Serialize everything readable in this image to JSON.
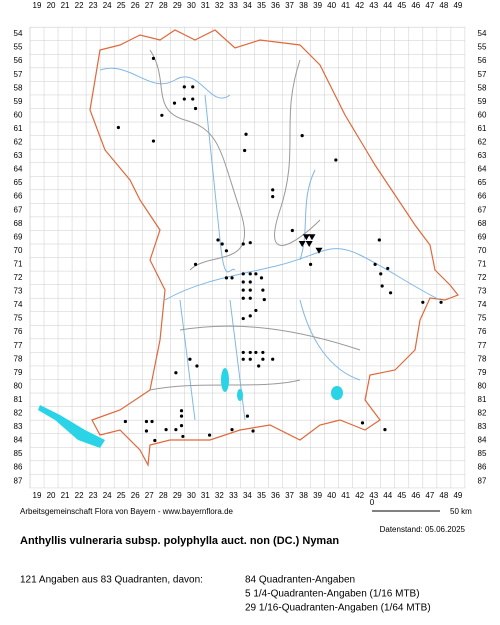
{
  "map": {
    "x_labels": [
      19,
      20,
      21,
      22,
      23,
      24,
      25,
      26,
      27,
      28,
      29,
      30,
      31,
      32,
      33,
      34,
      35,
      36,
      37,
      38,
      39,
      40,
      41,
      42,
      43,
      44,
      45,
      46,
      47,
      48,
      49
    ],
    "y_labels": [
      54,
      55,
      56,
      57,
      58,
      59,
      60,
      61,
      62,
      63,
      64,
      65,
      66,
      67,
      68,
      69,
      70,
      71,
      72,
      73,
      74,
      75,
      76,
      77,
      78,
      79,
      80,
      81,
      82,
      83,
      84,
      85,
      86,
      87
    ],
    "dots": [
      [
        27.3,
        55.8
      ],
      [
        29.5,
        57.9
      ],
      [
        30.1,
        57.9
      ],
      [
        29.5,
        58.8
      ],
      [
        30.1,
        58.8
      ],
      [
        28.8,
        59.1
      ],
      [
        30.3,
        59.5
      ],
      [
        27.9,
        60
      ],
      [
        24.8,
        60.9
      ],
      [
        27.3,
        61.9
      ],
      [
        33.9,
        61.4
      ],
      [
        37.9,
        61.5
      ],
      [
        33.8,
        62.6
      ],
      [
        40.3,
        63.3
      ],
      [
        35.8,
        65.5
      ],
      [
        35.8,
        66
      ],
      [
        31.9,
        69.2
      ],
      [
        32.2,
        69.5
      ],
      [
        33.7,
        69.5
      ],
      [
        34.2,
        69.4
      ],
      [
        32.5,
        70
      ],
      [
        37.2,
        68.5
      ],
      [
        38.5,
        71
      ],
      [
        30.3,
        71
      ],
      [
        32.5,
        72
      ],
      [
        32.9,
        72
      ],
      [
        33.7,
        71.7
      ],
      [
        34.2,
        71.7
      ],
      [
        34.6,
        71.7
      ],
      [
        35,
        72
      ],
      [
        33.7,
        72.3
      ],
      [
        34.2,
        72.3
      ],
      [
        33.7,
        72.9
      ],
      [
        34.2,
        72.9
      ],
      [
        35.1,
        72.9
      ],
      [
        34.2,
        73.5
      ],
      [
        33.7,
        73.5
      ],
      [
        35.2,
        73.6
      ],
      [
        34.6,
        74.4
      ],
      [
        34.2,
        74.8
      ],
      [
        33.7,
        75
      ],
      [
        43.1,
        71
      ],
      [
        43.5,
        71.7
      ],
      [
        44,
        71.3
      ],
      [
        43.6,
        72.6
      ],
      [
        44.2,
        73.1
      ],
      [
        46.5,
        73.8
      ],
      [
        47.8,
        73.8
      ],
      [
        43.4,
        69.2
      ],
      [
        33.7,
        77.5
      ],
      [
        34.2,
        77.5
      ],
      [
        34.6,
        77.5
      ],
      [
        35.1,
        77.5
      ],
      [
        33.7,
        78
      ],
      [
        34.2,
        78
      ],
      [
        35.1,
        78
      ],
      [
        35.8,
        78
      ],
      [
        34.8,
        78.5
      ],
      [
        29.9,
        78
      ],
      [
        30.4,
        78.5
      ],
      [
        28.9,
        79
      ],
      [
        29.3,
        81.8
      ],
      [
        29.3,
        82.2
      ],
      [
        29.3,
        82.9
      ],
      [
        27.2,
        82.6
      ],
      [
        26.8,
        82.6
      ],
      [
        25.3,
        82.6
      ],
      [
        26.8,
        83.3
      ],
      [
        28.2,
        83.2
      ],
      [
        28.9,
        83.2
      ],
      [
        29.4,
        83.7
      ],
      [
        27.4,
        84
      ],
      [
        31.3,
        83.6
      ],
      [
        34,
        82.2
      ],
      [
        34.4,
        83.3
      ],
      [
        42.2,
        82.7
      ],
      [
        43.8,
        83.2
      ],
      [
        32.9,
        83.2
      ]
    ],
    "triangles": [
      [
        38.2,
        69
      ],
      [
        38.6,
        69
      ],
      [
        37.9,
        69.5
      ],
      [
        38.4,
        69.5
      ],
      [
        39.1,
        70
      ]
    ],
    "credit": "Arbeitsgemeinschaft Flora von Bayern - www.bayernflora.de",
    "scale_start": "0",
    "scale_end": "50 km",
    "date": "Datenstand: 05.06.2025",
    "title": "Anthyllis vulneraria subsp. polyphylla auct. non (DC.) Nyman",
    "summary": "121 Angaben aus 83 Quadranten, davon:",
    "counts": [
      "84 Quadranten-Angaben",
      "5 1/4-Quadranten-Angaben (1/16 MTB)",
      "29 1/16-Quadranten-Angaben (1/64 MTB)"
    ]
  }
}
